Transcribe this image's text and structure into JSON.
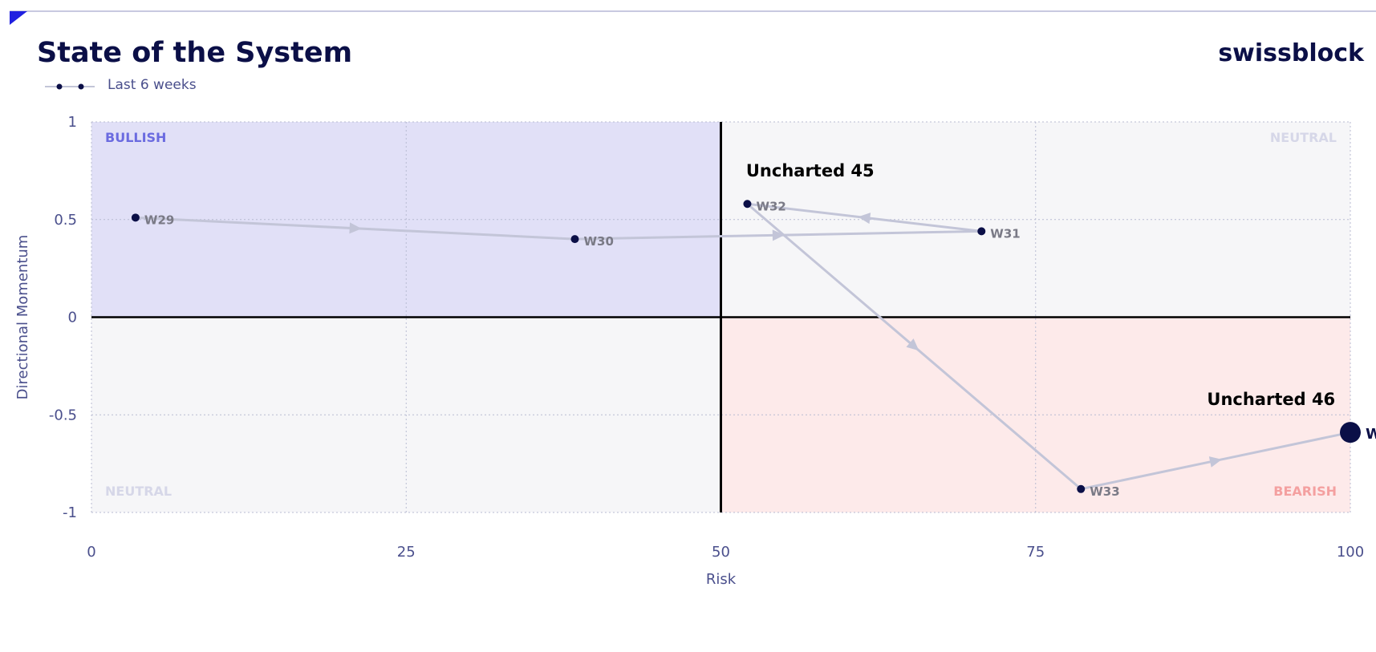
{
  "header": {
    "title": "State of the System",
    "brand": "swissblock",
    "legend_label": "Last 6 weeks"
  },
  "colors": {
    "navy": "#0b0f47",
    "bullish_bg": "#e1e0f7",
    "bearish_bg": "#fdeaea",
    "neutral_bg": "#f6f6f8",
    "bullish_text": "#6b6be0",
    "bearish_text": "#f4a0a0",
    "neutral_text": "#d6d7e8",
    "path": "#c3c5d8",
    "axis_text": "#4a4f8c",
    "accent": "#2020e0"
  },
  "chart_data": {
    "type": "scatter",
    "xlabel": "Risk",
    "ylabel": "Directional Momentum",
    "xlim": [
      0,
      100
    ],
    "ylim": [
      -1,
      1
    ],
    "x_ticks": [
      0,
      25,
      50,
      75,
      100
    ],
    "x_tick_labels": [
      "0",
      "25",
      "50",
      "75",
      "100"
    ],
    "y_ticks": [
      1,
      0.5,
      0,
      -0.5,
      -1
    ],
    "y_tick_labels": [
      "1",
      "0.5",
      "0",
      "-0.5",
      "-1"
    ],
    "grid": true,
    "quadrants": {
      "top_left": "BULLISH",
      "top_right": "NEUTRAL",
      "bottom_left": "NEUTRAL",
      "bottom_right": "BEARISH"
    },
    "points": [
      {
        "label": "W29",
        "x": 3.5,
        "y": 0.51
      },
      {
        "label": "W30",
        "x": 38.4,
        "y": 0.4
      },
      {
        "label": "W31",
        "x": 70.7,
        "y": 0.44
      },
      {
        "label": "W32",
        "x": 52.1,
        "y": 0.58
      },
      {
        "label": "W33",
        "x": 78.6,
        "y": -0.88
      },
      {
        "label": "W",
        "x": 100,
        "y": -0.59
      }
    ],
    "annotations": [
      {
        "text": "Uncharted 45",
        "x": 52.0,
        "y": 0.72
      },
      {
        "text": "Uncharted 46",
        "x": 98.8,
        "y": -0.45
      }
    ]
  }
}
